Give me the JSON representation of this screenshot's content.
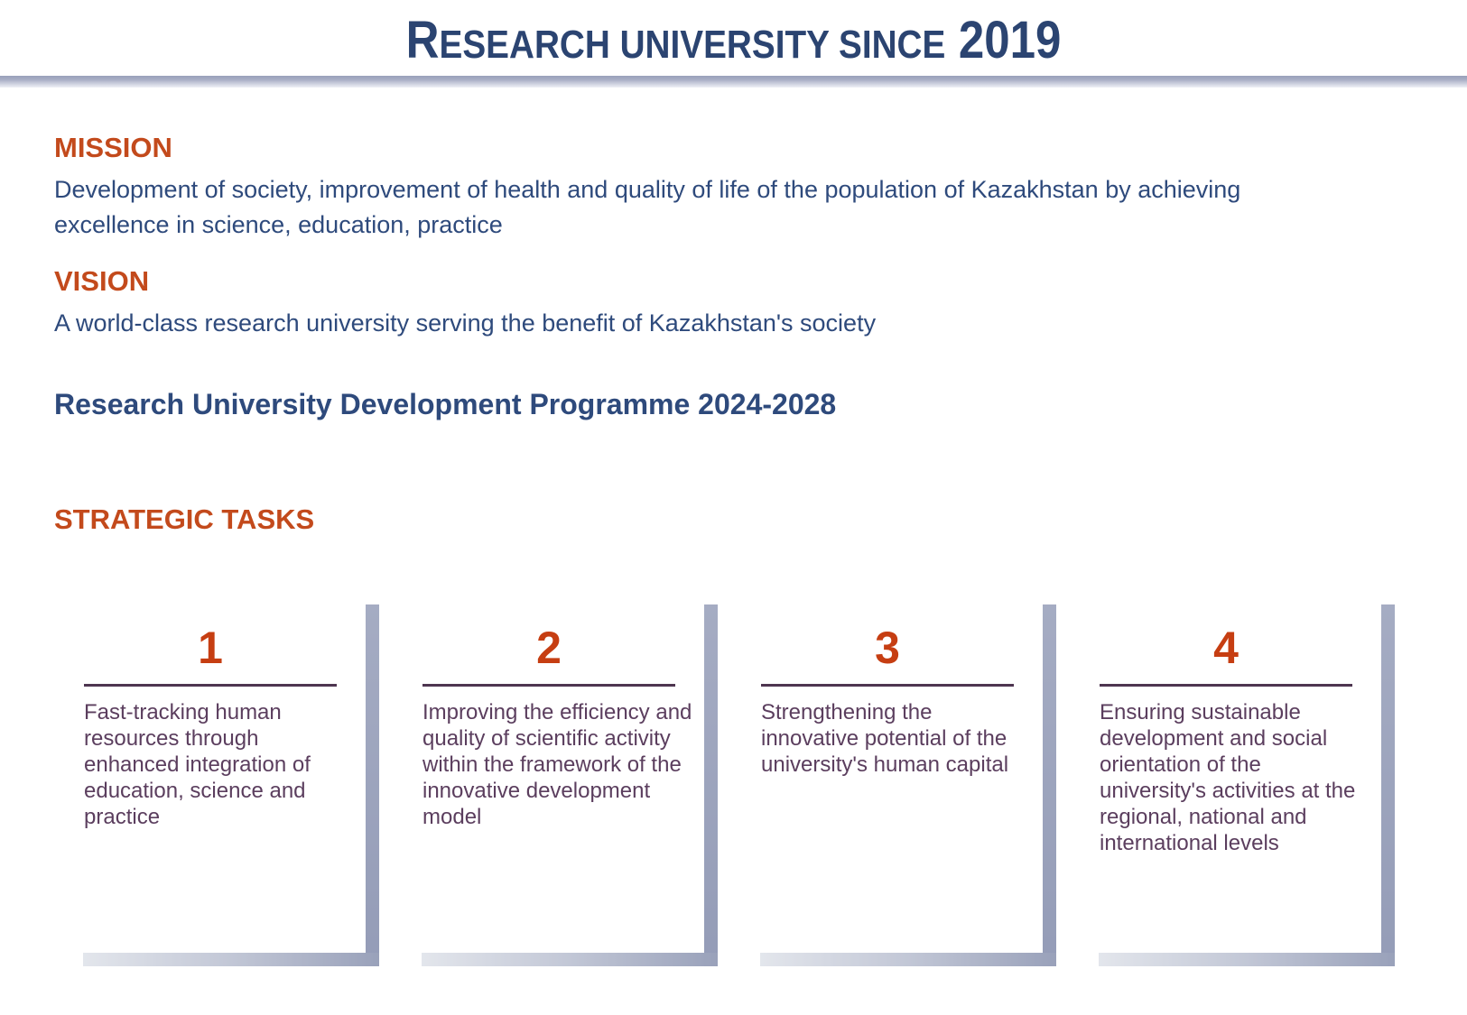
{
  "header": {
    "title_lead": "R",
    "title_rest": "ESEARCH UNIVERSITY SINCE",
    "title_year": "2019"
  },
  "mission": {
    "label": "MISSION",
    "text": "Development of society, improvement of health and quality of life of the population of Kazakhstan by achieving excellence in science, education, practice"
  },
  "vision": {
    "label": "VISION",
    "text": "A world-class research university serving the benefit of Kazakhstan's society"
  },
  "programme": {
    "title": "Research University Development Programme 2024-2028"
  },
  "strategic": {
    "label": "STRATEGIC TASKS"
  },
  "tasks": [
    {
      "number": "1",
      "text": "Fast-tracking human resources through enhanced integration of education, science and practice"
    },
    {
      "number": "2",
      "text": "Improving the efficiency and quality of scientific activity within the framework of the innovative development model"
    },
    {
      "number": "3",
      "text": "Strengthening the innovative potential of the university's human capital"
    },
    {
      "number": "4",
      "text": "Ensuring sustainable development and social orientation of the university's activities at the regional, national and international levels"
    }
  ],
  "colors": {
    "navy_text": "#2E4A7C",
    "title_navy": "#2B4471",
    "heading_orange": "#C34A1C",
    "number_orange": "#C63E12",
    "task_text_plum": "#5B3E5E",
    "task_rule_plum": "#4E3550",
    "shadow_dark": "#99A1BA",
    "shadow_light": "#E3E6EC"
  }
}
